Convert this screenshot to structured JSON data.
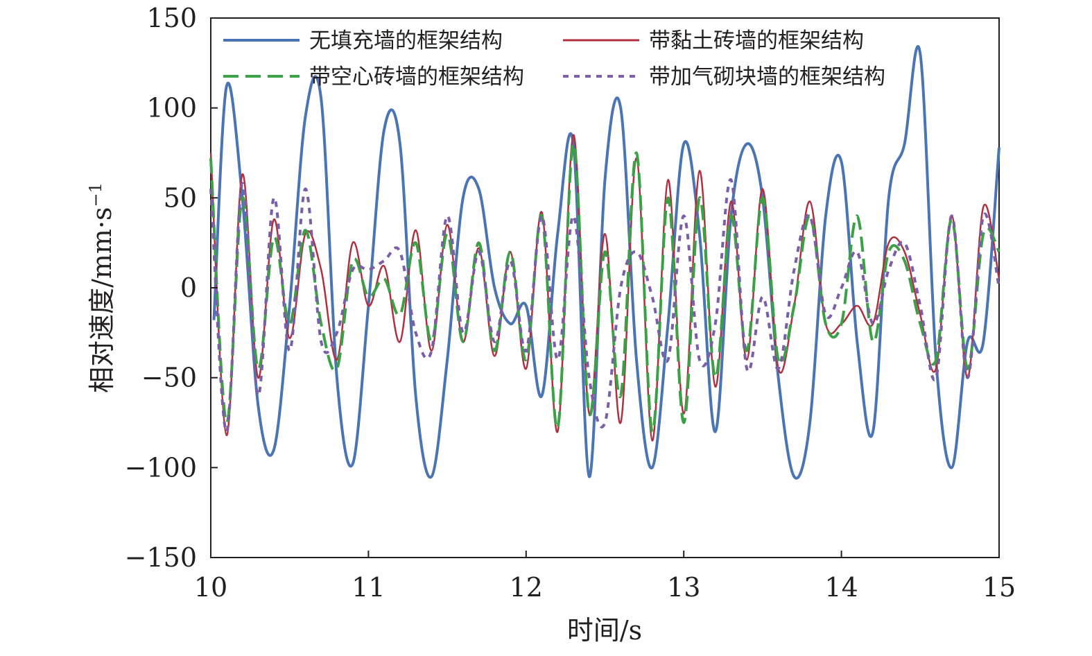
{
  "chart_data": {
    "type": "line",
    "title": "",
    "xlabel": "时间/s",
    "ylabel": "相对速度/mm·s",
    "ylabel_superscript": "−1",
    "xlim": [
      10,
      15
    ],
    "ylim": [
      -150,
      150
    ],
    "x_ticks": [
      10,
      11,
      12,
      13,
      14,
      15
    ],
    "x_tick_labels": [
      "10",
      "11",
      "12",
      "13",
      "14",
      "15"
    ],
    "y_ticks": [
      150,
      100,
      50,
      0,
      -50,
      -100,
      -150
    ],
    "y_tick_labels": [
      "150",
      "100",
      "50",
      "0",
      "−50",
      "−100",
      "−150"
    ],
    "grid": false,
    "legend_position": "top",
    "x": [
      10.0,
      10.1,
      10.2,
      10.3,
      10.4,
      10.5,
      10.6,
      10.7,
      10.8,
      10.9,
      11.0,
      11.1,
      11.2,
      11.3,
      11.4,
      11.5,
      11.6,
      11.7,
      11.8,
      11.9,
      12.0,
      12.1,
      12.2,
      12.3,
      12.4,
      12.5,
      12.6,
      12.7,
      12.8,
      12.9,
      13.0,
      13.1,
      13.2,
      13.3,
      13.4,
      13.5,
      13.6,
      13.7,
      13.8,
      13.9,
      14.0,
      14.1,
      14.2,
      14.3,
      14.4,
      14.5,
      14.6,
      14.7,
      14.8,
      14.9,
      15.0
    ],
    "series": [
      {
        "name": "无填充墙的框架结构",
        "color": "#4a74b4",
        "dash": "solid",
        "values": [
          -18,
          112,
          50,
          -65,
          -90,
          -10,
          95,
          105,
          -50,
          -98,
          -10,
          88,
          80,
          -60,
          -105,
          -40,
          50,
          55,
          0,
          -20,
          -10,
          -60,
          30,
          80,
          -105,
          60,
          100,
          -40,
          -100,
          -20,
          80,
          30,
          -80,
          40,
          80,
          50,
          -50,
          -105,
          -75,
          40,
          70,
          -30,
          -80,
          50,
          80,
          130,
          -40,
          -100,
          -30,
          -30,
          78
        ],
        "first_value_at": 10.02
      },
      {
        "name": "带黏土砖墙的框架结构",
        "color": "#b0303f",
        "dash": "solid",
        "values": [
          75,
          -82,
          63,
          -50,
          38,
          -28,
          30,
          10,
          -40,
          25,
          -10,
          12,
          -30,
          32,
          -35,
          35,
          -30,
          22,
          -38,
          20,
          -45,
          42,
          -80,
          85,
          -70,
          30,
          -75,
          72,
          -85,
          60,
          -70,
          65,
          -55,
          48,
          -40,
          55,
          -45,
          -10,
          48,
          -20,
          -20,
          -10,
          -20,
          25,
          20,
          -15,
          -45,
          40,
          -50,
          45,
          5
        ]
      },
      {
        "name": "带空心砖墙的框架结构",
        "color": "#3ca046",
        "dash": "long-dash",
        "values": [
          72,
          -75,
          50,
          -45,
          28,
          -20,
          32,
          -20,
          -45,
          15,
          -5,
          5,
          -15,
          25,
          -30,
          30,
          -30,
          25,
          -35,
          20,
          -40,
          40,
          -78,
          80,
          -70,
          20,
          -60,
          75,
          -80,
          50,
          -75,
          50,
          -50,
          40,
          -35,
          50,
          -40,
          -10,
          40,
          -20,
          -20,
          40,
          -30,
          20,
          15,
          -20,
          -40,
          38,
          -45,
          30,
          20
        ]
      },
      {
        "name": "带加气砌块墙的框架结构",
        "color": "#7a5fa8",
        "dash": "short-dash",
        "values": [
          55,
          -80,
          58,
          -60,
          50,
          -35,
          55,
          -30,
          -25,
          10,
          10,
          15,
          20,
          -25,
          -35,
          40,
          -25,
          20,
          -30,
          15,
          -35,
          40,
          -40,
          40,
          -50,
          -75,
          0,
          20,
          -5,
          -40,
          40,
          -40,
          -20,
          60,
          -45,
          -5,
          -45,
          10,
          40,
          -15,
          0,
          20,
          -20,
          10,
          25,
          -10,
          -50,
          40,
          -50,
          40,
          0
        ]
      }
    ]
  }
}
